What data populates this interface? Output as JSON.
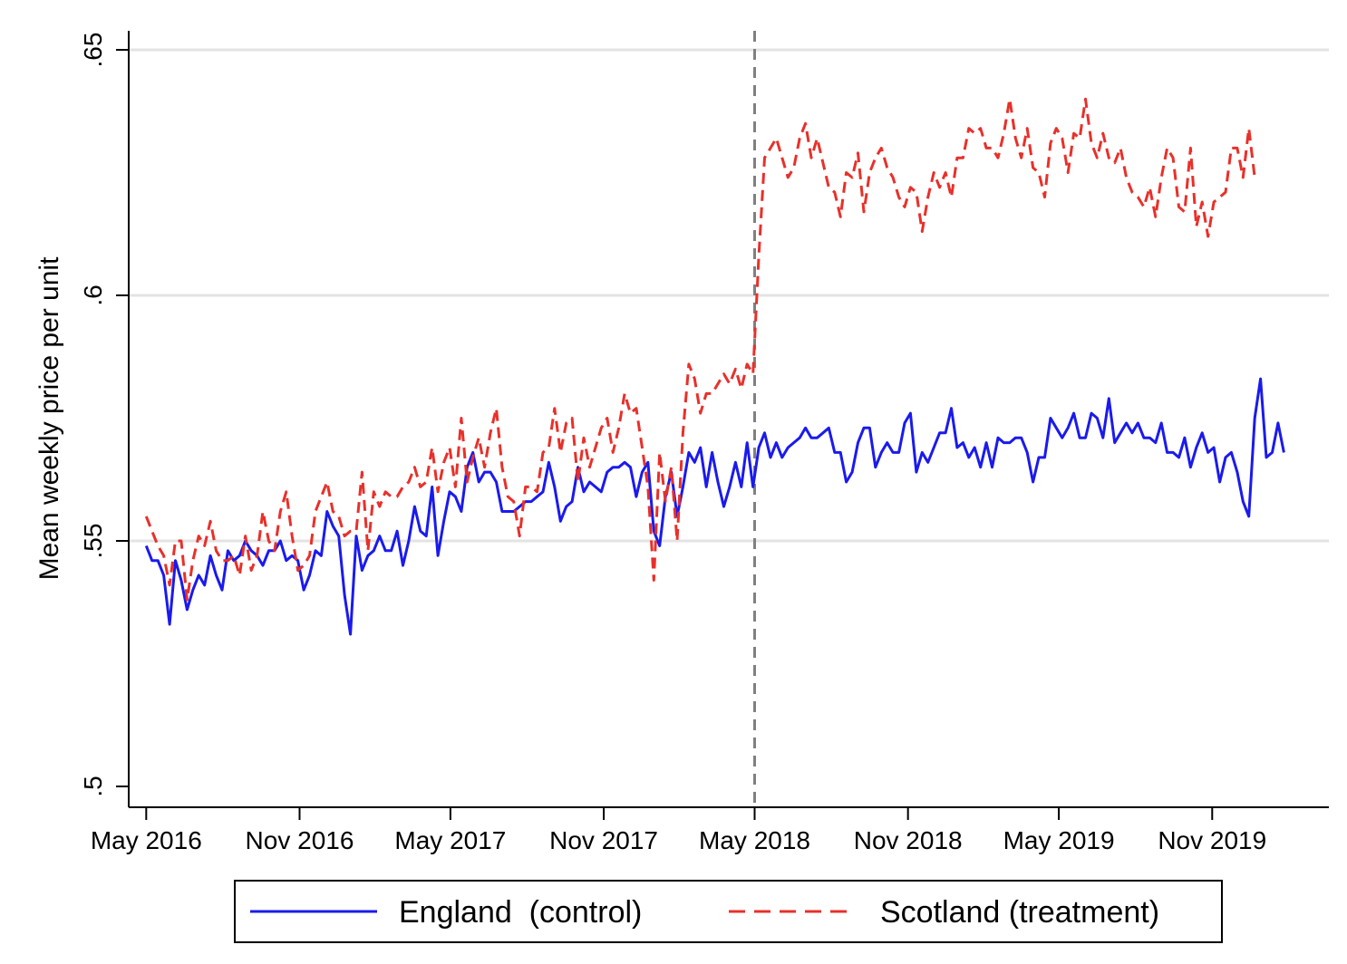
{
  "chart_data": {
    "type": "line",
    "title": "",
    "xlabel": "",
    "ylabel": "Mean weekly price per unit",
    "ylim": [
      0.5,
      0.65
    ],
    "yticks": [
      {
        "value": 0.5,
        "label": ".5"
      },
      {
        "value": 0.55,
        "label": ".55"
      },
      {
        "value": 0.6,
        "label": ".6"
      },
      {
        "value": 0.65,
        "label": ".65"
      }
    ],
    "xticks": [
      {
        "date": "2016-05-01",
        "label": "May 2016"
      },
      {
        "date": "2016-11-01",
        "label": "Nov 2016"
      },
      {
        "date": "2017-05-01",
        "label": "May 2017"
      },
      {
        "date": "2017-11-01",
        "label": "Nov 2017"
      },
      {
        "date": "2018-05-01",
        "label": "May 2018"
      },
      {
        "date": "2018-11-01",
        "label": "Nov 2018"
      },
      {
        "date": "2019-05-01",
        "label": "May 2019"
      },
      {
        "date": "2019-11-01",
        "label": "Nov 2019"
      }
    ],
    "xlim": [
      "2016-04-10",
      "2020-03-20"
    ],
    "vline": {
      "date": "2018-05-01",
      "style": "dashed",
      "color": "#808080"
    },
    "grid": true,
    "legend": "bottom",
    "x_start": "2016-05-01",
    "x_interval": "weekly",
    "series": [
      {
        "name": "England  (control)",
        "color": "#1a1aee",
        "style": "solid",
        "values": [
          0.549,
          0.546,
          0.546,
          0.543,
          0.533,
          0.546,
          0.542,
          0.536,
          0.54,
          0.543,
          0.541,
          0.547,
          0.543,
          0.54,
          0.548,
          0.546,
          0.547,
          0.55,
          0.548,
          0.547,
          0.545,
          0.548,
          0.548,
          0.55,
          0.546,
          0.547,
          0.546,
          0.54,
          0.543,
          0.548,
          0.547,
          0.556,
          0.553,
          0.551,
          0.539,
          0.531,
          0.551,
          0.544,
          0.547,
          0.548,
          0.551,
          0.548,
          0.548,
          0.552,
          0.545,
          0.55,
          0.557,
          0.552,
          0.551,
          0.561,
          0.547,
          0.554,
          0.56,
          0.559,
          0.556,
          0.565,
          0.568,
          0.562,
          0.564,
          0.564,
          0.562,
          0.556,
          0.556,
          0.556,
          0.557,
          0.558,
          0.558,
          0.559,
          0.56,
          0.566,
          0.561,
          0.554,
          0.557,
          0.558,
          0.565,
          0.56,
          0.562,
          0.561,
          0.56,
          0.564,
          0.565,
          0.565,
          0.566,
          0.565,
          0.559,
          0.564,
          0.566,
          0.552,
          0.549,
          0.559,
          0.564,
          0.555,
          0.561,
          0.568,
          0.566,
          0.569,
          0.561,
          0.568,
          0.562,
          0.557,
          0.561,
          0.566,
          0.561,
          0.57,
          0.561,
          0.569,
          0.572,
          0.567,
          0.57,
          0.567,
          0.569,
          0.57,
          0.571,
          0.573,
          0.571,
          0.571,
          0.572,
          0.573,
          0.568,
          0.568,
          0.562,
          0.564,
          0.57,
          0.573,
          0.573,
          0.565,
          0.568,
          0.57,
          0.568,
          0.568,
          0.574,
          0.576,
          0.564,
          0.568,
          0.566,
          0.569,
          0.572,
          0.572,
          0.577,
          0.569,
          0.57,
          0.567,
          0.569,
          0.565,
          0.57,
          0.565,
          0.571,
          0.57,
          0.57,
          0.571,
          0.571,
          0.568,
          0.562,
          0.567,
          0.567,
          0.575,
          0.573,
          0.571,
          0.573,
          0.576,
          0.571,
          0.571,
          0.576,
          0.575,
          0.571,
          0.579,
          0.57,
          0.572,
          0.574,
          0.572,
          0.574,
          0.571,
          0.571,
          0.57,
          0.574,
          0.568,
          0.568,
          0.567,
          0.571,
          0.565,
          0.569,
          0.572,
          0.568,
          0.569,
          0.562,
          0.567,
          0.568,
          0.564,
          0.558,
          0.555,
          0.575,
          0.583,
          0.567,
          0.568,
          0.574,
          0.568
        ]
      },
      {
        "name": "Scotland (treatment)",
        "color": "#e8302a",
        "style": "dashed",
        "values": [
          0.555,
          0.552,
          0.549,
          0.547,
          0.541,
          0.55,
          0.55,
          0.538,
          0.546,
          0.551,
          0.549,
          0.554,
          0.548,
          0.546,
          0.546,
          0.547,
          0.543,
          0.551,
          0.544,
          0.547,
          0.556,
          0.55,
          0.548,
          0.556,
          0.56,
          0.551,
          0.544,
          0.545,
          0.547,
          0.556,
          0.559,
          0.562,
          0.556,
          0.555,
          0.551,
          0.552,
          0.552,
          0.564,
          0.548,
          0.56,
          0.557,
          0.56,
          0.559,
          0.559,
          0.561,
          0.562,
          0.565,
          0.561,
          0.562,
          0.569,
          0.56,
          0.566,
          0.569,
          0.561,
          0.575,
          0.562,
          0.567,
          0.571,
          0.565,
          0.572,
          0.577,
          0.565,
          0.559,
          0.558,
          0.551,
          0.561,
          0.561,
          0.56,
          0.568,
          0.569,
          0.577,
          0.568,
          0.574,
          0.575,
          0.562,
          0.571,
          0.565,
          0.569,
          0.573,
          0.575,
          0.568,
          0.573,
          0.58,
          0.576,
          0.577,
          0.569,
          0.561,
          0.542,
          0.568,
          0.558,
          0.565,
          0.55,
          0.572,
          0.586,
          0.583,
          0.576,
          0.58,
          0.58,
          0.582,
          0.584,
          0.582,
          0.585,
          0.581,
          0.586,
          0.584,
          0.608,
          0.628,
          0.63,
          0.632,
          0.628,
          0.624,
          0.626,
          0.632,
          0.635,
          0.628,
          0.632,
          0.627,
          0.622,
          0.621,
          0.616,
          0.625,
          0.624,
          0.629,
          0.617,
          0.625,
          0.628,
          0.63,
          0.626,
          0.624,
          0.62,
          0.618,
          0.622,
          0.621,
          0.613,
          0.62,
          0.625,
          0.622,
          0.625,
          0.62,
          0.628,
          0.628,
          0.634,
          0.633,
          0.634,
          0.63,
          0.63,
          0.628,
          0.633,
          0.64,
          0.632,
          0.628,
          0.634,
          0.626,
          0.625,
          0.62,
          0.631,
          0.634,
          0.632,
          0.625,
          0.633,
          0.632,
          0.64,
          0.631,
          0.628,
          0.633,
          0.628,
          0.627,
          0.63,
          0.624,
          0.621,
          0.62,
          0.618,
          0.622,
          0.616,
          0.624,
          0.63,
          0.628,
          0.618,
          0.617,
          0.63,
          0.614,
          0.619,
          0.612,
          0.619,
          0.62,
          0.621,
          0.63,
          0.63,
          0.624,
          0.634,
          0.624
        ]
      }
    ]
  }
}
